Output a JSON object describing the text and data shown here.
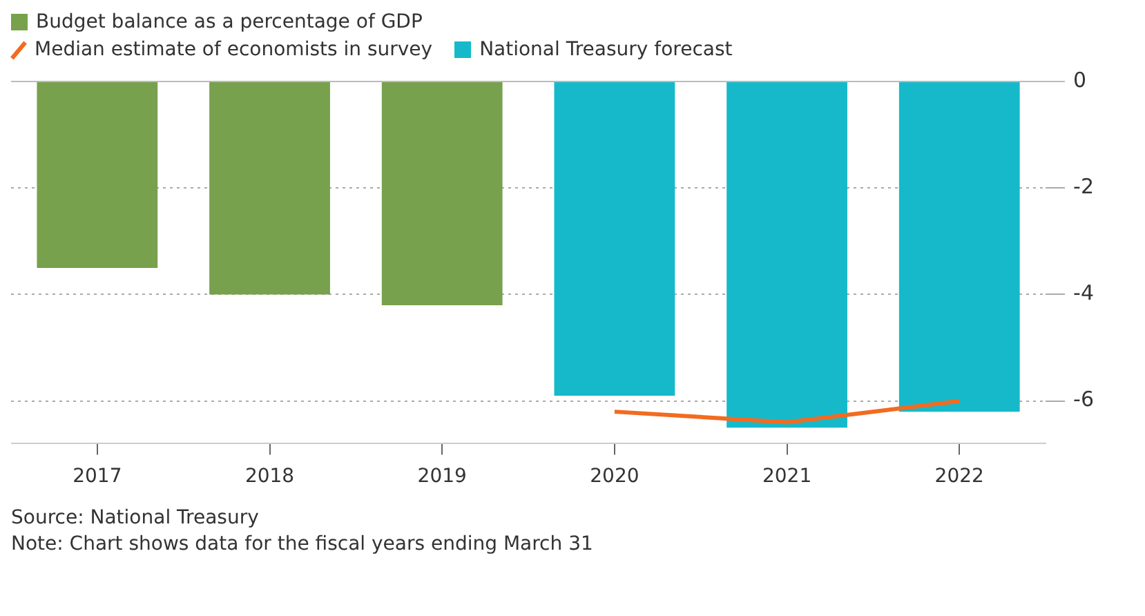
{
  "chart_data": {
    "type": "bar",
    "categories": [
      "2017",
      "2018",
      "2019",
      "2020",
      "2021",
      "2022"
    ],
    "series": [
      {
        "name": "Budget balance as a percentage of GDP",
        "color": "#77a14c",
        "values": [
          -3.5,
          -4.0,
          -4.2,
          null,
          null,
          null
        ]
      },
      {
        "name": "Median estimate of economists in survey",
        "type": "line",
        "color": "#f26b21",
        "values": [
          null,
          null,
          null,
          -6.2,
          -6.4,
          -6.0
        ]
      },
      {
        "name": "National Treasury forecast",
        "color": "#15b9ca",
        "values": [
          null,
          null,
          null,
          -5.9,
          -6.5,
          -6.2
        ]
      }
    ],
    "ylim": [
      -6.8,
      0
    ],
    "yticks": [
      0,
      -2,
      -4,
      -6
    ],
    "grid": "y",
    "legend": "top left",
    "marker": "none",
    "annotations": [
      "Source: National Treasury",
      "Note: Chart shows data for the fiscal years ending March 31"
    ]
  }
}
